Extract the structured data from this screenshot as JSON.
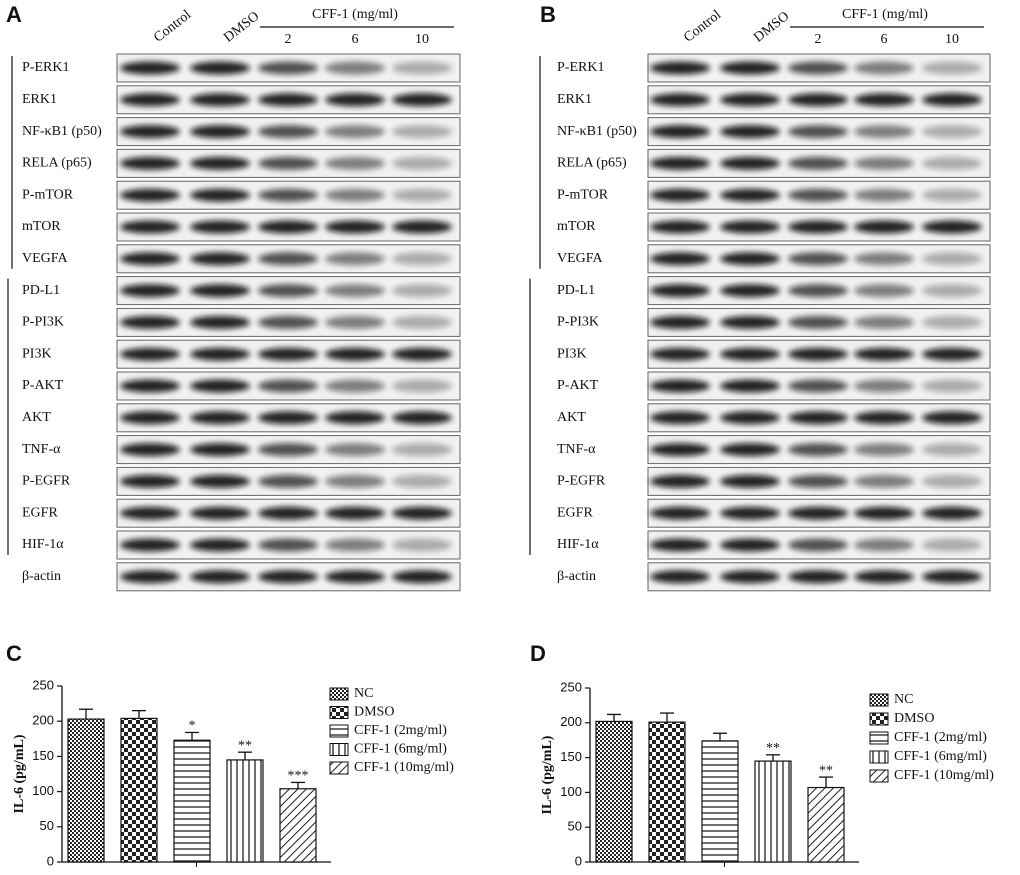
{
  "panels": [
    {
      "label": "A",
      "columns": [
        "Control",
        "DMSO"
      ],
      "group": "CFF-1 (mg/ml)",
      "doses": [
        "2",
        "6",
        "10"
      ],
      "proteins": [
        "P-ERK1",
        "ERK1",
        "NF-κB1 (p50)",
        "RELA (p65)",
        "P-mTOR",
        "mTOR",
        "VEGFA",
        "PD-L1",
        "P-PI3K",
        "PI3K",
        "P-AKT",
        "AKT",
        "TNF-α",
        "P-EGFR",
        "EGFR",
        "HIF-1α",
        "β-actin"
      ]
    },
    {
      "label": "B",
      "columns": [
        "Control",
        "DMSO"
      ],
      "group": "CFF-1 (mg/ml)",
      "doses": [
        "2",
        "6",
        "10"
      ],
      "proteins": [
        "P-ERK1",
        "ERK1",
        "NF-κB1 (p50)",
        "RELA (p65)",
        "P-mTOR",
        "mTOR",
        "VEGFA",
        "PD-L1",
        "P-PI3K",
        "PI3K",
        "P-AKT",
        "AKT",
        "TNF-α",
        "P-EGFR",
        "EGFR",
        "HIF-1α",
        "β-actin"
      ]
    }
  ],
  "chart_data": [
    {
      "type": "bar",
      "panel_label": "C",
      "ylabel": "IL-6 (pg/mL)",
      "ylim": [
        0,
        250
      ],
      "yticks": [
        0,
        50,
        100,
        150,
        200,
        250
      ],
      "series": [
        {
          "name": "NC",
          "pattern": "dense-check",
          "values": [
            203
          ],
          "errors": [
            14
          ]
        },
        {
          "name": "DMSO",
          "pattern": "checker",
          "values": [
            204
          ],
          "errors": [
            11
          ]
        },
        {
          "name": "CFF-1 (2mg/ml)",
          "pattern": "horizontal",
          "values": [
            173
          ],
          "errors": [
            11
          ],
          "annotation": "*"
        },
        {
          "name": "CFF-1 (6mg/ml)",
          "pattern": "vertical",
          "values": [
            145
          ],
          "errors": [
            11
          ],
          "annotation": "**"
        },
        {
          "name": "CFF-1 (10mg/ml)",
          "pattern": "diagonal",
          "values": [
            104
          ],
          "errors": [
            9
          ],
          "annotation": "***"
        }
      ]
    },
    {
      "type": "bar",
      "panel_label": "D",
      "ylabel": "IL-6 (pg/mL)",
      "ylim": [
        0,
        250
      ],
      "yticks": [
        0,
        50,
        100,
        150,
        200,
        250
      ],
      "series": [
        {
          "name": "NC",
          "pattern": "dense-check",
          "values": [
            202
          ],
          "errors": [
            10
          ]
        },
        {
          "name": "DMSO",
          "pattern": "checker",
          "values": [
            201
          ],
          "errors": [
            13
          ]
        },
        {
          "name": "CFF-1 (2mg/ml)",
          "pattern": "horizontal",
          "values": [
            174
          ],
          "errors": [
            11
          ]
        },
        {
          "name": "CFF-1 (6mg/ml)",
          "pattern": "vertical",
          "values": [
            145
          ],
          "errors": [
            9
          ],
          "annotation": "**"
        },
        {
          "name": "CFF-1 (10mg/ml)",
          "pattern": "diagonal",
          "values": [
            107
          ],
          "errors": [
            15
          ],
          "annotation": "**"
        }
      ]
    }
  ]
}
